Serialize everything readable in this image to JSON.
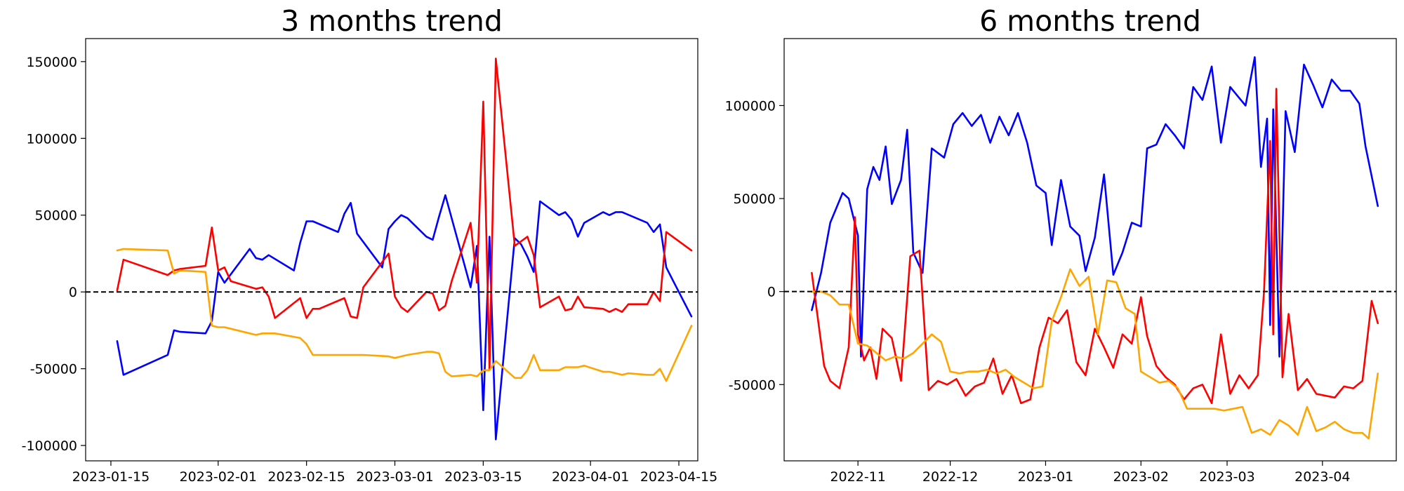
{
  "chart_data": [
    {
      "type": "line",
      "title": "3 months trend",
      "xlabel": "",
      "ylabel": "",
      "x_axis": "date",
      "xlim": [
        "2023-01-11",
        "2023-04-18"
      ],
      "ylim": [
        -110000,
        165000
      ],
      "xticks": [
        "2023-01-15",
        "2023-02-01",
        "2023-02-15",
        "2023-03-01",
        "2023-03-15",
        "2023-04-01",
        "2023-04-15"
      ],
      "yticks": [
        -100000,
        -50000,
        0,
        50000,
        100000,
        150000
      ],
      "reference_line": {
        "y": 0,
        "style": "dashed",
        "color": "#000000"
      },
      "grid": false,
      "series": [
        {
          "color": "#0000ff",
          "x": [
            "2023-01-16",
            "2023-01-17",
            "2023-01-24",
            "2023-01-25",
            "2023-01-26",
            "2023-01-30",
            "2023-01-31",
            "2023-02-01",
            "2023-02-02",
            "2023-02-06",
            "2023-02-07",
            "2023-02-08",
            "2023-02-09",
            "2023-02-13",
            "2023-02-14",
            "2023-02-15",
            "2023-02-16",
            "2023-02-20",
            "2023-02-21",
            "2023-02-22",
            "2023-02-23",
            "2023-02-27",
            "2023-02-28",
            "2023-03-01",
            "2023-03-02",
            "2023-03-03",
            "2023-03-06",
            "2023-03-07",
            "2023-03-08",
            "2023-03-09",
            "2023-03-13",
            "2023-03-14",
            "2023-03-15",
            "2023-03-16",
            "2023-03-17",
            "2023-03-20",
            "2023-03-21",
            "2023-03-22",
            "2023-03-23",
            "2023-03-24",
            "2023-03-27",
            "2023-03-28",
            "2023-03-29",
            "2023-03-30",
            "2023-03-31",
            "2023-04-03",
            "2023-04-04",
            "2023-04-05",
            "2023-04-06",
            "2023-04-10",
            "2023-04-11",
            "2023-04-12",
            "2023-04-13",
            "2023-04-14",
            "2023-04-17"
          ],
          "values": [
            -32000,
            -54000,
            -41000,
            -25000,
            -26000,
            -27000,
            -19000,
            13000,
            6000,
            28000,
            22000,
            21000,
            24000,
            14000,
            32000,
            46000,
            46000,
            39000,
            51000,
            58000,
            38000,
            16000,
            41000,
            46000,
            50000,
            48000,
            36000,
            34000,
            49000,
            63000,
            3000,
            30000,
            -77000,
            36000,
            -96000,
            35000,
            31000,
            23000,
            13000,
            59000,
            50000,
            52000,
            47000,
            36000,
            45000,
            52000,
            50000,
            52000,
            52000,
            45000,
            39000,
            44000,
            16000,
            8000,
            -16000
          ]
        },
        {
          "color": "#ff0000",
          "x": [
            "2023-01-16",
            "2023-01-17",
            "2023-01-24",
            "2023-01-25",
            "2023-01-26",
            "2023-01-30",
            "2023-01-31",
            "2023-02-01",
            "2023-02-02",
            "2023-02-03",
            "2023-02-07",
            "2023-02-08",
            "2023-02-09",
            "2023-02-10",
            "2023-02-14",
            "2023-02-15",
            "2023-02-16",
            "2023-02-17",
            "2023-02-21",
            "2023-02-22",
            "2023-02-23",
            "2023-02-24",
            "2023-02-28",
            "2023-03-01",
            "2023-03-02",
            "2023-03-03",
            "2023-03-06",
            "2023-03-07",
            "2023-03-08",
            "2023-03-09",
            "2023-03-10",
            "2023-03-13",
            "2023-03-14",
            "2023-03-15",
            "2023-03-16",
            "2023-03-17",
            "2023-03-20",
            "2023-03-21",
            "2023-03-22",
            "2023-03-23",
            "2023-03-24",
            "2023-03-27",
            "2023-03-28",
            "2023-03-29",
            "2023-03-30",
            "2023-03-31",
            "2023-04-03",
            "2023-04-04",
            "2023-04-05",
            "2023-04-06",
            "2023-04-07",
            "2023-04-10",
            "2023-04-11",
            "2023-04-12",
            "2023-04-13",
            "2023-04-17"
          ],
          "values": [
            1000,
            21000,
            11000,
            14000,
            15000,
            17000,
            42000,
            14000,
            16000,
            7000,
            2000,
            3000,
            -3000,
            -17000,
            -4000,
            -17000,
            -11000,
            -11000,
            -4000,
            -16000,
            -17000,
            3000,
            25000,
            -3000,
            -10000,
            -13000,
            0,
            -1000,
            -12000,
            -9000,
            7000,
            45000,
            6000,
            124000,
            -50000,
            152000,
            30000,
            33000,
            36000,
            24000,
            -10000,
            -3000,
            -12000,
            -11000,
            -3000,
            -10000,
            -11000,
            -13000,
            -11000,
            -13000,
            -8000,
            -8000,
            0,
            -6000,
            39000,
            27000
          ]
        },
        {
          "color": "#ffa500",
          "x": [
            "2023-01-16",
            "2023-01-17",
            "2023-01-24",
            "2023-01-25",
            "2023-01-26",
            "2023-01-30",
            "2023-01-31",
            "2023-02-01",
            "2023-02-02",
            "2023-02-03",
            "2023-02-07",
            "2023-02-08",
            "2023-02-09",
            "2023-02-10",
            "2023-02-14",
            "2023-02-15",
            "2023-02-16",
            "2023-02-17",
            "2023-02-21",
            "2023-02-22",
            "2023-02-23",
            "2023-02-24",
            "2023-02-28",
            "2023-03-01",
            "2023-03-02",
            "2023-03-03",
            "2023-03-06",
            "2023-03-07",
            "2023-03-08",
            "2023-03-09",
            "2023-03-10",
            "2023-03-13",
            "2023-03-14",
            "2023-03-15",
            "2023-03-16",
            "2023-03-17",
            "2023-03-20",
            "2023-03-21",
            "2023-03-22",
            "2023-03-23",
            "2023-03-24",
            "2023-03-27",
            "2023-03-28",
            "2023-03-29",
            "2023-03-30",
            "2023-03-31",
            "2023-04-03",
            "2023-04-04",
            "2023-04-05",
            "2023-04-06",
            "2023-04-07",
            "2023-04-10",
            "2023-04-11",
            "2023-04-12",
            "2023-04-13",
            "2023-04-17"
          ],
          "values": [
            27000,
            28000,
            27000,
            12000,
            14000,
            13000,
            -22000,
            -23000,
            -23000,
            -24000,
            -28000,
            -27000,
            -27000,
            -27000,
            -30000,
            -34000,
            -41000,
            -41000,
            -41000,
            -41000,
            -41000,
            -41000,
            -42000,
            -43000,
            -42000,
            -41000,
            -39000,
            -39000,
            -40000,
            -52000,
            -55000,
            -54000,
            -55000,
            -51000,
            -51000,
            -45000,
            -56000,
            -56000,
            -51000,
            -41000,
            -51000,
            -51000,
            -49000,
            -49000,
            -49000,
            -48000,
            -52000,
            -52000,
            -53000,
            -54000,
            -53000,
            -54000,
            -54000,
            -50000,
            -58000,
            -22000
          ]
        }
      ]
    },
    {
      "type": "line",
      "title": "6 months trend",
      "xlabel": "",
      "ylabel": "",
      "x_axis": "date",
      "xlim": [
        "2022-10-08",
        "2023-04-25"
      ],
      "ylim": [
        -91000,
        136000
      ],
      "xticks": [
        "2022-11",
        "2022-12",
        "2023-01",
        "2023-02",
        "2023-03",
        "2023-04"
      ],
      "yticks": [
        -50000,
        0,
        50000,
        100000
      ],
      "reference_line": {
        "y": 0,
        "style": "dashed",
        "color": "#000000"
      },
      "grid": false,
      "series": [
        {
          "color": "#0000ff",
          "x": [
            "2022-10-17",
            "2022-10-20",
            "2022-10-23",
            "2022-10-27",
            "2022-10-29",
            "2022-11-01",
            "2022-11-02",
            "2022-11-04",
            "2022-11-06",
            "2022-11-08",
            "2022-11-10",
            "2022-11-12",
            "2022-11-15",
            "2022-11-17",
            "2022-11-19",
            "2022-11-22",
            "2022-11-25",
            "2022-11-29",
            "2022-12-02",
            "2022-12-05",
            "2022-12-08",
            "2022-12-11",
            "2022-12-14",
            "2022-12-17",
            "2022-12-20",
            "2022-12-23",
            "2022-12-26",
            "2022-12-29",
            "2023-01-01",
            "2023-01-03",
            "2023-01-06",
            "2023-01-09",
            "2023-01-12",
            "2023-01-14",
            "2023-01-17",
            "2023-01-20",
            "2023-01-23",
            "2023-01-26",
            "2023-01-29",
            "2023-02-01",
            "2023-02-03",
            "2023-02-06",
            "2023-02-09",
            "2023-02-12",
            "2023-02-15",
            "2023-02-18",
            "2023-02-21",
            "2023-02-24",
            "2023-02-27",
            "2023-03-02",
            "2023-03-05",
            "2023-03-07",
            "2023-03-10",
            "2023-03-12",
            "2023-03-14",
            "2023-03-15",
            "2023-03-16",
            "2023-03-18",
            "2023-03-20",
            "2023-03-23",
            "2023-03-26",
            "2023-03-29",
            "2023-04-01",
            "2023-04-04",
            "2023-04-07",
            "2023-04-10",
            "2023-04-13",
            "2023-04-15",
            "2023-04-19"
          ],
          "values": [
            -10000,
            10000,
            37000,
            53000,
            50000,
            30000,
            -35000,
            55000,
            67000,
            60000,
            78000,
            47000,
            60000,
            87000,
            21000,
            10000,
            77000,
            72000,
            90000,
            96000,
            89000,
            95000,
            80000,
            94000,
            84000,
            96000,
            80000,
            57000,
            53000,
            25000,
            60000,
            35000,
            30000,
            11000,
            29000,
            63000,
            9000,
            21000,
            37000,
            35000,
            77000,
            79000,
            90000,
            84000,
            77000,
            110000,
            103000,
            121000,
            80000,
            110000,
            104000,
            100000,
            126000,
            67000,
            93000,
            -18000,
            98000,
            -35000,
            97000,
            75000,
            122000,
            111000,
            99000,
            114000,
            108000,
            108000,
            101000,
            78000,
            46000
          ]
        },
        {
          "color": "#ff0000",
          "x": [
            "2022-10-17",
            "2022-10-19",
            "2022-10-21",
            "2022-10-23",
            "2022-10-26",
            "2022-10-29",
            "2022-10-31",
            "2022-11-01",
            "2022-11-03",
            "2022-11-05",
            "2022-11-07",
            "2022-11-09",
            "2022-11-12",
            "2022-11-15",
            "2022-11-18",
            "2022-11-21",
            "2022-11-24",
            "2022-11-27",
            "2022-11-30",
            "2022-12-03",
            "2022-12-06",
            "2022-12-09",
            "2022-12-12",
            "2022-12-15",
            "2022-12-18",
            "2022-12-21",
            "2022-12-24",
            "2022-12-27",
            "2022-12-30",
            "2023-01-02",
            "2023-01-05",
            "2023-01-08",
            "2023-01-11",
            "2023-01-14",
            "2023-01-17",
            "2023-01-20",
            "2023-01-23",
            "2023-01-26",
            "2023-01-29",
            "2023-02-01",
            "2023-02-03",
            "2023-02-06",
            "2023-02-09",
            "2023-02-12",
            "2023-02-15",
            "2023-02-18",
            "2023-02-21",
            "2023-02-24",
            "2023-02-27",
            "2023-03-02",
            "2023-03-05",
            "2023-03-08",
            "2023-03-11",
            "2023-03-13",
            "2023-03-15",
            "2023-03-16",
            "2023-03-17",
            "2023-03-19",
            "2023-03-21",
            "2023-03-24",
            "2023-03-27",
            "2023-03-30",
            "2023-04-02",
            "2023-04-05",
            "2023-04-08",
            "2023-04-11",
            "2023-04-14",
            "2023-04-17",
            "2023-04-19"
          ],
          "values": [
            10000,
            -15000,
            -40000,
            -48000,
            -52000,
            -30000,
            40000,
            -23000,
            -37000,
            -30000,
            -47000,
            -20000,
            -25000,
            -48000,
            19000,
            22000,
            -53000,
            -48000,
            -50000,
            -47000,
            -56000,
            -51000,
            -49000,
            -36000,
            -55000,
            -45000,
            -60000,
            -58000,
            -30000,
            -14000,
            -17000,
            -10000,
            -38000,
            -45000,
            -20000,
            -30000,
            -41000,
            -23000,
            -28000,
            -3000,
            -24000,
            -40000,
            -46000,
            -50000,
            -58000,
            -52000,
            -50000,
            -60000,
            -23000,
            -55000,
            -45000,
            -52000,
            -45000,
            0,
            81000,
            -23000,
            109000,
            -46000,
            -12000,
            -53000,
            -47000,
            -55000,
            -56000,
            -57000,
            -51000,
            -52000,
            -48000,
            -5000,
            -17000
          ]
        },
        {
          "color": "#ffa500",
          "x": [
            "2022-10-17",
            "2022-10-20",
            "2022-10-23",
            "2022-10-26",
            "2022-10-29",
            "2022-11-01",
            "2022-11-04",
            "2022-11-07",
            "2022-11-10",
            "2022-11-13",
            "2022-11-16",
            "2022-11-19",
            "2022-11-22",
            "2022-11-25",
            "2022-11-28",
            "2022-12-01",
            "2022-12-04",
            "2022-12-07",
            "2022-12-10",
            "2022-12-13",
            "2022-12-16",
            "2022-12-19",
            "2022-12-22",
            "2022-12-25",
            "2022-12-28",
            "2022-12-31",
            "2023-01-03",
            "2023-01-06",
            "2023-01-09",
            "2023-01-12",
            "2023-01-15",
            "2023-01-18",
            "2023-01-21",
            "2023-01-24",
            "2023-01-27",
            "2023-01-30",
            "2023-02-01",
            "2023-02-04",
            "2023-02-07",
            "2023-02-10",
            "2023-02-13",
            "2023-02-16",
            "2023-02-19",
            "2023-02-22",
            "2023-02-25",
            "2023-02-28",
            "2023-03-03",
            "2023-03-06",
            "2023-03-09",
            "2023-03-12",
            "2023-03-15",
            "2023-03-18",
            "2023-03-21",
            "2023-03-24",
            "2023-03-27",
            "2023-03-30",
            "2023-04-02",
            "2023-04-05",
            "2023-04-08",
            "2023-04-11",
            "2023-04-14",
            "2023-04-16",
            "2023-04-19"
          ],
          "values": [
            0,
            0,
            -2000,
            -7000,
            -7000,
            -28000,
            -29000,
            -33000,
            -37000,
            -35000,
            -36000,
            -33000,
            -28000,
            -23000,
            -27000,
            -43000,
            -44000,
            -43000,
            -43000,
            -42000,
            -44000,
            -42000,
            -46000,
            -49000,
            -52000,
            -51000,
            -16000,
            -3000,
            12000,
            3000,
            8000,
            -23000,
            6000,
            5000,
            -9000,
            -12000,
            -43000,
            -46000,
            -49000,
            -48000,
            -52000,
            -63000,
            -63000,
            -63000,
            -63000,
            -64000,
            -63000,
            -62000,
            -76000,
            -74000,
            -77000,
            -69000,
            -72000,
            -77000,
            -62000,
            -75000,
            -73000,
            -70000,
            -74000,
            -76000,
            -76000,
            -79000,
            -44000
          ]
        }
      ]
    }
  ]
}
